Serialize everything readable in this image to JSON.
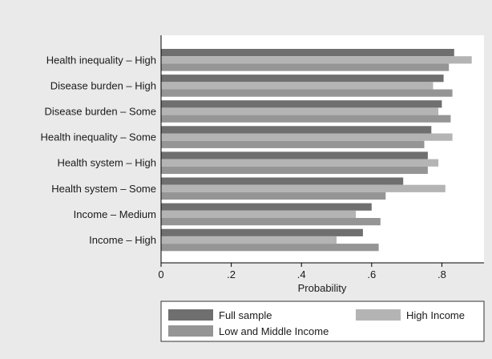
{
  "chart_data": {
    "type": "bar",
    "orientation": "horizontal",
    "categories": [
      "Health inequality – High",
      "Disease burden – High",
      "Disease burden – Some",
      "Health inequality – Some",
      "Health system – High",
      "Health system – Some",
      "Income – Medium",
      "Income – High"
    ],
    "series": [
      {
        "name": "Full sample",
        "color": "#6f6f6f",
        "values": [
          0.835,
          0.805,
          0.8,
          0.77,
          0.76,
          0.69,
          0.6,
          0.575
        ]
      },
      {
        "name": "High Income",
        "color": "#b4b4b4",
        "values": [
          0.885,
          0.775,
          0.79,
          0.83,
          0.79,
          0.81,
          0.555,
          0.5
        ]
      },
      {
        "name": "Low and Middle Income",
        "color": "#959595",
        "values": [
          0.82,
          0.83,
          0.825,
          0.75,
          0.76,
          0.64,
          0.625,
          0.62
        ]
      }
    ],
    "xlabel": "Probability",
    "ylabel": "",
    "xlim": [
      0,
      0.92
    ],
    "xticks": [
      0,
      0.2,
      0.4,
      0.6,
      0.8
    ],
    "xtick_labels": [
      "0",
      ".2",
      ".4",
      ".6",
      ".8"
    ],
    "grid": false,
    "legend_position": "bottom",
    "colors": {
      "background": "#eaeaea",
      "plot_background": "#ffffff",
      "axis": "#000000"
    }
  }
}
